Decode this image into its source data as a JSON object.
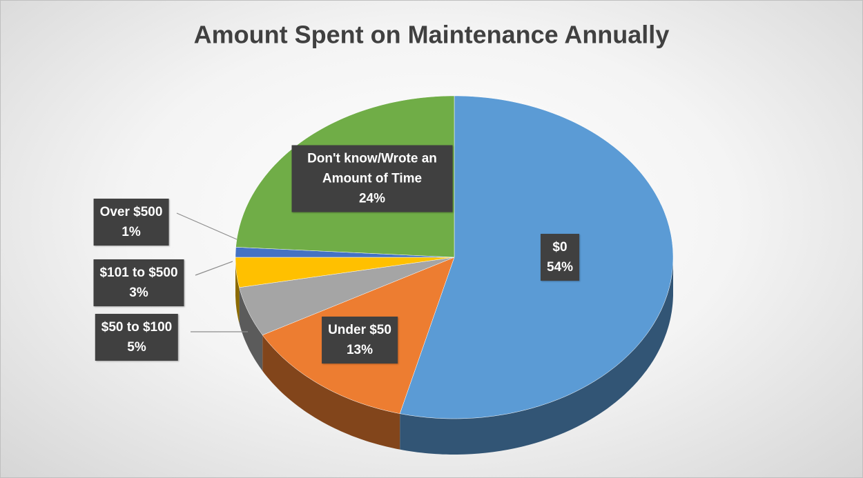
{
  "chart_data": {
    "type": "pie",
    "title": "Amount Spent on Maintenance Annually",
    "categories": [
      "$0",
      "Under $50",
      "$50 to $100",
      "$101 to $500",
      "Over $500",
      "Don't know/Wrote an Amount of Time"
    ],
    "values": [
      54,
      13,
      5,
      3,
      1,
      24
    ],
    "value_labels": [
      "54%",
      "13%",
      "5%",
      "3%",
      "1%",
      "24%"
    ],
    "colors": [
      "#5b9bd5",
      "#ed7d31",
      "#a5a5a5",
      "#ffc000",
      "#4472c4",
      "#70ad47"
    ]
  }
}
